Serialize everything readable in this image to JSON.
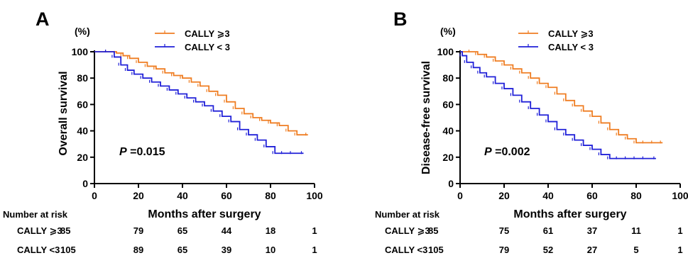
{
  "chart_data": [
    {
      "type": "line",
      "panel": "A",
      "xlabel": "Months after surgery",
      "ylabel": "Overall survival",
      "yunit": "(%)",
      "xlim": [
        0,
        100
      ],
      "ylim": [
        0,
        100
      ],
      "xticks": [
        0,
        20,
        40,
        60,
        80,
        100
      ],
      "yticks": [
        0,
        20,
        40,
        60,
        80,
        100
      ],
      "annotation": {
        "italic": "P",
        "text": " =0.015"
      },
      "series": [
        {
          "name": "CALLY ⩾3",
          "color": "#ef7d22",
          "x": [
            0,
            6,
            10,
            13,
            16,
            20,
            24,
            28,
            32,
            36,
            40,
            44,
            48,
            52,
            56,
            60,
            64,
            68,
            72,
            76,
            80,
            84,
            88,
            92,
            97
          ],
          "y": [
            100,
            100,
            99,
            97,
            95,
            92,
            89,
            87,
            84,
            82,
            80,
            77,
            74,
            70,
            67,
            62,
            57,
            53,
            50,
            48,
            46,
            44,
            40,
            37,
            37
          ]
        },
        {
          "name": "CALLY < 3",
          "color": "#2020d8",
          "x": [
            0,
            6,
            9,
            12,
            15,
            18,
            22,
            26,
            30,
            34,
            38,
            42,
            46,
            50,
            54,
            58,
            62,
            66,
            70,
            74,
            78,
            82,
            86,
            90,
            95
          ],
          "y": [
            100,
            100,
            96,
            90,
            86,
            83,
            80,
            77,
            74,
            71,
            68,
            65,
            62,
            59,
            55,
            51,
            47,
            41,
            37,
            33,
            28,
            23,
            23,
            23,
            23
          ]
        }
      ],
      "risk_table": {
        "header": "Number at risk",
        "rows": [
          {
            "label": "CALLY ⩾3",
            "values": [
              85,
              79,
              65,
              44,
              18,
              1
            ]
          },
          {
            "label": "CALLY <3",
            "values": [
              105,
              89,
              65,
              39,
              10,
              1
            ]
          }
        ]
      }
    },
    {
      "type": "line",
      "panel": "B",
      "xlabel": "Months after surgery",
      "ylabel": "Disease-free survival",
      "yunit": "(%)",
      "xlim": [
        0,
        100
      ],
      "ylim": [
        0,
        100
      ],
      "xticks": [
        0,
        20,
        40,
        60,
        80,
        100
      ],
      "yticks": [
        0,
        20,
        40,
        60,
        80,
        100
      ],
      "annotation": {
        "italic": "P",
        "text": " =0.002"
      },
      "series": [
        {
          "name": "CALLY ⩾3",
          "color": "#ef7d22",
          "x": [
            0,
            5,
            8,
            12,
            16,
            20,
            24,
            28,
            32,
            36,
            40,
            44,
            48,
            52,
            56,
            60,
            64,
            68,
            72,
            76,
            80,
            84,
            88,
            92
          ],
          "y": [
            100,
            100,
            98,
            96,
            93,
            90,
            87,
            84,
            80,
            76,
            73,
            68,
            63,
            59,
            55,
            51,
            46,
            41,
            37,
            34,
            31,
            31,
            31,
            31
          ]
        },
        {
          "name": "CALLY < 3",
          "color": "#2020d8",
          "x": [
            0,
            1,
            3,
            6,
            9,
            12,
            16,
            20,
            24,
            28,
            32,
            36,
            40,
            44,
            48,
            52,
            56,
            60,
            64,
            68,
            72,
            76,
            80,
            84,
            89
          ],
          "y": [
            100,
            97,
            92,
            88,
            84,
            81,
            76,
            72,
            67,
            62,
            57,
            52,
            47,
            41,
            37,
            33,
            29,
            26,
            22,
            19,
            19,
            19,
            19,
            19,
            19
          ]
        }
      ],
      "risk_table": {
        "header": "Number at risk",
        "rows": [
          {
            "label": "CALLY ⩾3",
            "values": [
              85,
              75,
              61,
              37,
              11,
              1
            ]
          },
          {
            "label": "CALLY <3",
            "values": [
              105,
              79,
              52,
              27,
              5,
              1
            ]
          }
        ]
      }
    }
  ]
}
